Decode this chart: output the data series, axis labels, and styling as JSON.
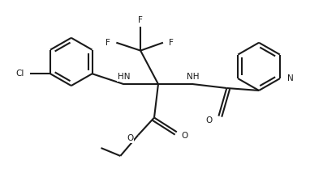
{
  "background": "#ffffff",
  "line_color": "#1a1a1a",
  "line_width": 1.5,
  "figsize": [
    3.82,
    2.19
  ],
  "dpi": 100,
  "xlim": [
    0,
    3.82
  ],
  "ylim": [
    0,
    2.19
  ]
}
